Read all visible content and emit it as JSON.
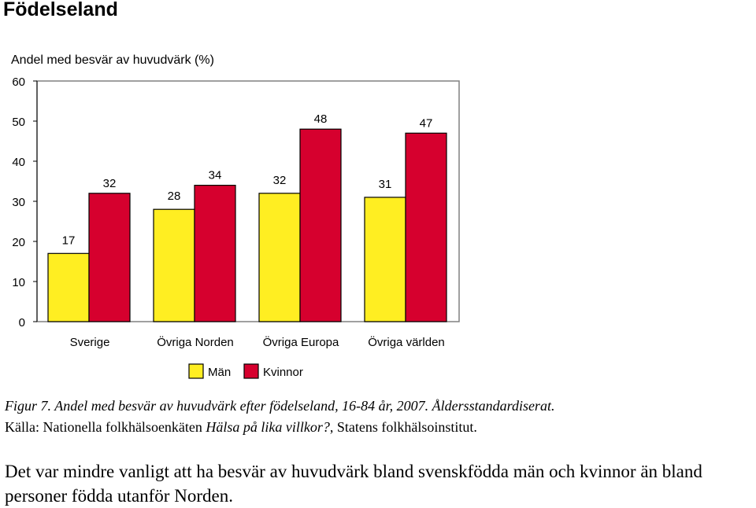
{
  "heading": "Födelseland",
  "chart_data": {
    "type": "bar",
    "title": "Andel med besvär av huvudvärk  (%)",
    "categories": [
      "Sverige",
      "Övriga Norden",
      "Övriga Europa",
      "Övriga världen"
    ],
    "series": [
      {
        "name": "Män",
        "values": [
          17,
          28,
          32,
          31
        ],
        "color": "#ffee22"
      },
      {
        "name": "Kvinnor",
        "values": [
          32,
          34,
          48,
          47
        ],
        "color": "#d6002e"
      }
    ],
    "ylim": [
      0,
      60
    ],
    "yticks": [
      "0",
      "10",
      "20",
      "30",
      "40",
      "50",
      "60"
    ],
    "legend_position": "bottom"
  },
  "caption": {
    "figure_label": "Figur 7.",
    "title_text": "Andel med besvär av huvudvärk efter födelseland, 16-84 år, 2007. Åldersstandardiserat.",
    "source_prefix": "Källa: Nationella folkhälsoenkäten ",
    "source_title": "Hälsa på lika villkor?",
    "source_suffix": ", Statens folkhälsoinstitut."
  },
  "body_text": "Det var mindre vanligt att ha besvär av huvudvärk bland svenskfödda män och kvinnor än bland personer födda utanför Norden."
}
